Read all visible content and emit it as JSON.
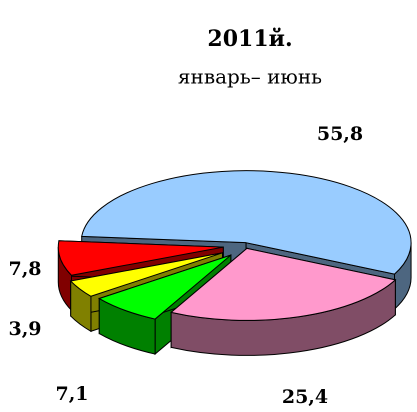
{
  "chart_data": {
    "type": "pie3d",
    "title": "2011й.",
    "subtitle": "январь– июнь",
    "categories": [
      null,
      null,
      null,
      null,
      null
    ],
    "values": [
      55.8,
      25.4,
      7.1,
      3.9,
      7.8
    ],
    "value_labels": [
      "55,8",
      "25,4",
      "7,1",
      "3,9",
      "7,8"
    ],
    "colors": [
      "#99ccff",
      "#ff99cc",
      "#00ff00",
      "#ffff00",
      "#ff0000"
    ]
  }
}
